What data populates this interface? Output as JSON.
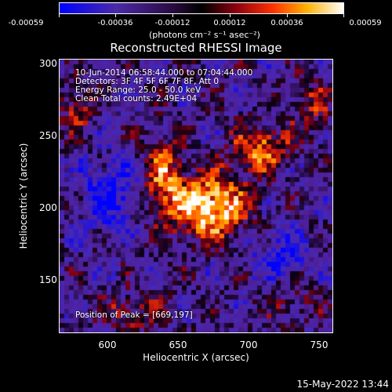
{
  "colorbar": {
    "ticks": [
      "-0.00059",
      "-0.00036",
      "-0.00012",
      "0.00012",
      "0.00036",
      "0.00059"
    ],
    "units": "(photons cm⁻² s⁻¹ asec⁻²)"
  },
  "title": "Reconstructed RHESSI Image",
  "annotations": {
    "time": "10-Jun-2014 06:58:44.000 to 07:04:44.000",
    "detectors": "Detectors: 3F 4F 5F 6F 7F 8F, Att 0",
    "energy": "Energy Range: 25.0 - 50.0 keV",
    "clean": "Clean     Total counts: 2.49E+04",
    "peak": "Position of Peak = [669,197]"
  },
  "axes": {
    "xlabel": "Heliocentric X (arcsec)",
    "ylabel": "Heliocentric Y (arcsec)",
    "xticks": [
      "600",
      "650",
      "700",
      "750"
    ],
    "yticks": [
      "300",
      "250",
      "200",
      "150"
    ],
    "xrange": [
      565,
      760
    ],
    "yrange": [
      110,
      305
    ]
  },
  "footer": {
    "date": "15-May-2022 13:44"
  }
}
